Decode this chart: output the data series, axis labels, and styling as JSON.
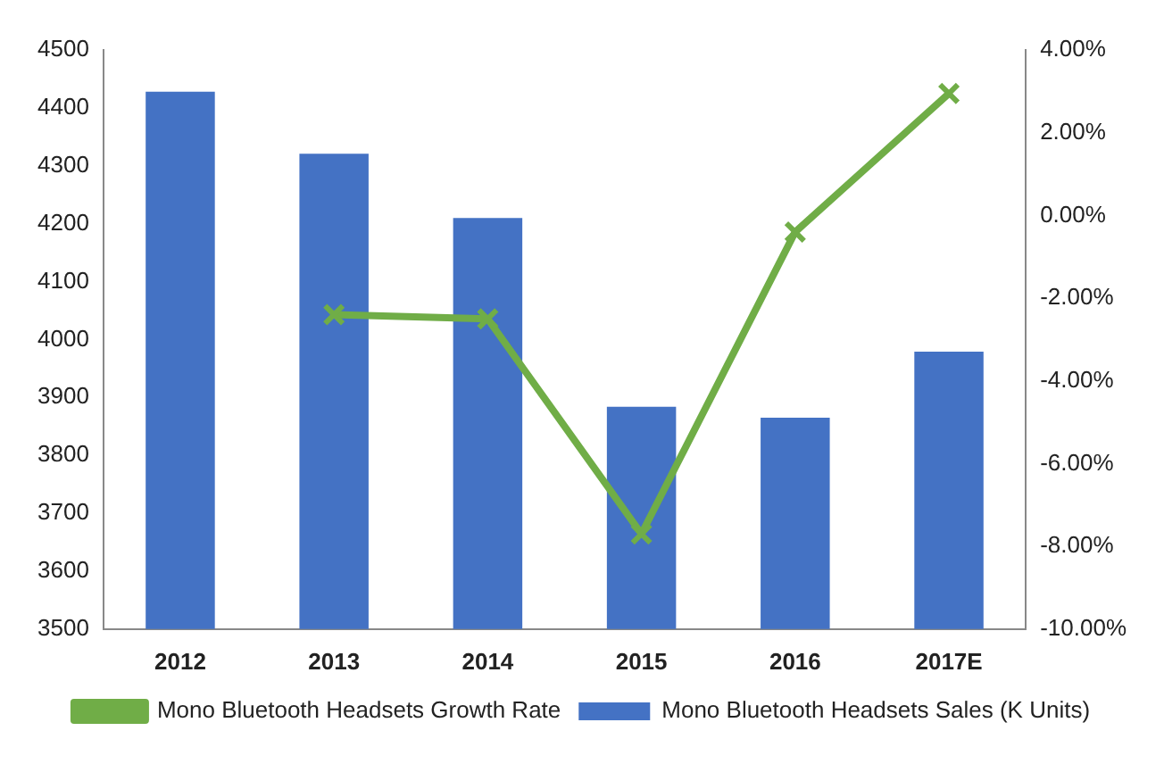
{
  "chart_data": {
    "type": "bar",
    "categories": [
      "2012",
      "2013",
      "2014",
      "2015",
      "2016",
      "2017E"
    ],
    "series": [
      {
        "name": "Mono Bluetooth Headsets Sales (K Units)",
        "color": "#4472c4",
        "values": [
          4428,
          4321,
          4210,
          3884,
          3865,
          3979
        ]
      },
      {
        "name": "Mono Bluetooth Headsets Growth Rate",
        "type": "line",
        "axis": "y2",
        "color": "#70ad47",
        "values": [
          null,
          -2.4,
          -2.5,
          -7.7,
          -0.4,
          2.95
        ]
      }
    ],
    "ylim": [
      3500,
      4500
    ],
    "yticks": [
      3500,
      3600,
      3700,
      3800,
      3900,
      4000,
      4100,
      4200,
      4300,
      4400,
      4500
    ],
    "y2lim": [
      -10,
      4
    ],
    "y2ticks": [
      {
        "value": -10,
        "label": "-10.00%"
      },
      {
        "value": -8,
        "label": "-8.00%"
      },
      {
        "value": -6,
        "label": "-6.00%"
      },
      {
        "value": -4,
        "label": "-4.00%"
      },
      {
        "value": -2,
        "label": "-2.00%"
      },
      {
        "value": 0,
        "label": "0.00%"
      },
      {
        "value": 2,
        "label": "2.00%"
      },
      {
        "value": 4,
        "label": "4.00%"
      }
    ],
    "grid": false,
    "legend": "bottom",
    "marker": "cross",
    "line_style": "solid"
  }
}
